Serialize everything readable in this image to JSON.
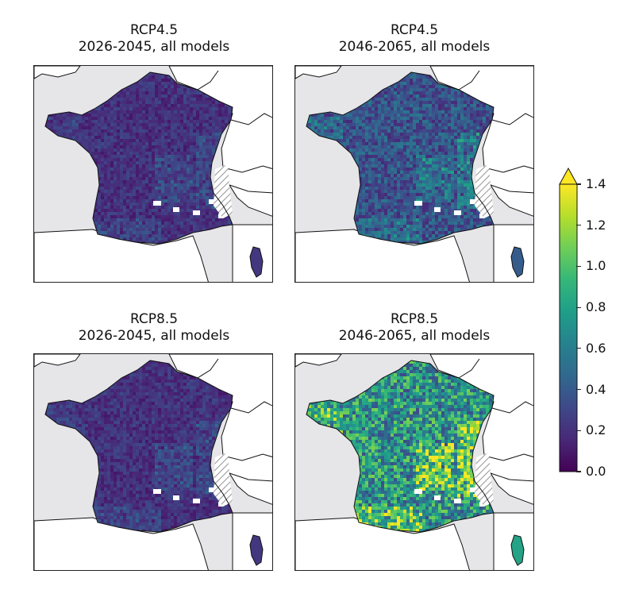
{
  "panels": [
    {
      "line1": "RCP4.5",
      "line2": "2026-2045, all models",
      "level": 0.25
    },
    {
      "line1": "RCP4.5",
      "line2": "2046-2065, all models",
      "level": 0.45
    },
    {
      "line1": "RCP8.5",
      "line2": "2026-2045, all models",
      "level": 0.25
    },
    {
      "line1": "RCP8.5",
      "line2": "2046-2065, all models",
      "level": 0.9
    }
  ],
  "colorbar": {
    "ticks": [
      "0.0",
      "0.2",
      "0.4",
      "0.6",
      "0.8",
      "1.0",
      "1.2",
      "1.4"
    ],
    "min": 0.0,
    "max": 1.4,
    "extend": "max",
    "colormap": "viridis",
    "colors": [
      "#440154",
      "#482878",
      "#3e4989",
      "#31688e",
      "#26828e",
      "#1f9e89",
      "#35b779",
      "#6ece58",
      "#b5de2b",
      "#fde725"
    ]
  },
  "colors": {
    "background": "#e6e6e9",
    "land_outside": "#ffffff",
    "border": "#222222",
    "hatch": "#9a9a9a"
  }
}
